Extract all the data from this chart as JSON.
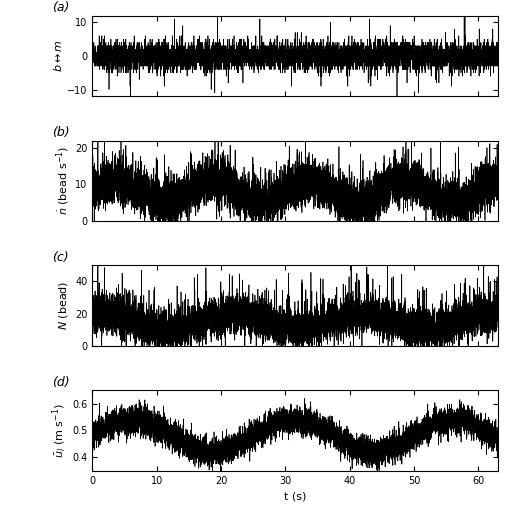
{
  "title_a": "(a)",
  "title_b": "(b)",
  "title_c": "(c)",
  "title_d": "(d)",
  "xlabel": "t (s)",
  "xlim": [
    0,
    63
  ],
  "xticks": [
    0,
    10,
    20,
    30,
    40,
    50,
    60
  ],
  "ylim_a": [
    -12,
    12
  ],
  "yticks_a": [
    -10,
    0,
    10
  ],
  "ylim_b": [
    0,
    22
  ],
  "yticks_b": [
    0,
    10,
    20
  ],
  "ylim_c": [
    0,
    50
  ],
  "yticks_c": [
    0,
    20,
    40
  ],
  "ylim_d": [
    0.35,
    0.65
  ],
  "yticks_d": [
    0.4,
    0.5,
    0.6
  ],
  "n_points": 8190,
  "seed": 42,
  "linewidth": 0.5,
  "color": "black",
  "figsize": [
    5.13,
    5.23
  ],
  "dpi": 100
}
